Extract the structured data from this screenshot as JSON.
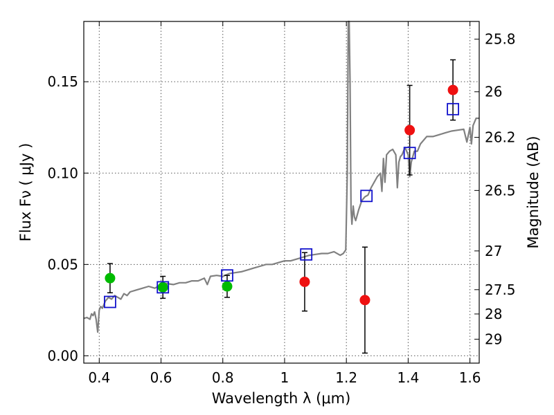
{
  "chart_data": {
    "type": "scatter",
    "xlabel": "Wavelength  λ (μm)",
    "ylabel": "Flux  Fν  ( μJy )",
    "right_ylabel": "Magnitude (AB)",
    "xlim": [
      0.35,
      1.63
    ],
    "ylim": [
      -0.004,
      0.183
    ],
    "grid": true,
    "x_ticks": [
      {
        "value": 0.4,
        "label": "0.4"
      },
      {
        "value": 0.6,
        "label": "0.6"
      },
      {
        "value": 0.8,
        "label": "0.8"
      },
      {
        "value": 1.0,
        "label": "1"
      },
      {
        "value": 1.2,
        "label": "1.2"
      },
      {
        "value": 1.4,
        "label": "1.4"
      },
      {
        "value": 1.6,
        "label": "1.6"
      }
    ],
    "y_ticks": [
      {
        "value": 0.0,
        "label": "0.00"
      },
      {
        "value": 0.05,
        "label": "0.05"
      },
      {
        "value": 0.1,
        "label": "0.10"
      },
      {
        "value": 0.15,
        "label": "0.15"
      }
    ],
    "right_ticks": [
      {
        "label": "25.8",
        "flux": 0.1733
      },
      {
        "label": "26",
        "flux": 0.1445
      },
      {
        "label": "26.2",
        "flux": 0.1196
      },
      {
        "label": "26.5",
        "flux": 0.0905
      },
      {
        "label": "27",
        "flux": 0.0574
      },
      {
        "label": "27.5",
        "flux": 0.0362
      },
      {
        "label": "28",
        "flux": 0.0229
      },
      {
        "label": "29",
        "flux": 0.0091
      }
    ],
    "series": [
      {
        "marker": "green-circle",
        "color": "#00bb00",
        "points": [
          {
            "x": 0.435,
            "y": 0.0425,
            "err": 0.008
          },
          {
            "x": 0.606,
            "y": 0.0375,
            "err": 0.006
          },
          {
            "x": 0.814,
            "y": 0.038,
            "err": 0.006
          }
        ]
      },
      {
        "marker": "red-circle",
        "color": "#ee1111",
        "points": [
          {
            "x": 1.065,
            "y": 0.0405,
            "err": 0.016
          },
          {
            "x": 1.26,
            "y": 0.0305,
            "err": 0.029
          },
          {
            "x": 1.405,
            "y": 0.1235,
            "err": 0.0245
          },
          {
            "x": 1.545,
            "y": 0.1455,
            "err": 0.0165
          }
        ]
      },
      {
        "marker": "blue-open-square",
        "color": "#1111cc",
        "points": [
          {
            "x": 0.435,
            "y": 0.0295
          },
          {
            "x": 0.606,
            "y": 0.0375
          },
          {
            "x": 0.814,
            "y": 0.044
          },
          {
            "x": 1.07,
            "y": 0.0555
          },
          {
            "x": 1.265,
            "y": 0.0875
          },
          {
            "x": 1.405,
            "y": 0.111
          },
          {
            "x": 1.545,
            "y": 0.135
          }
        ]
      },
      {
        "type": "line",
        "color": "#808080",
        "x": [
          0.35,
          0.36,
          0.37,
          0.375,
          0.38,
          0.385,
          0.39,
          0.395,
          0.4,
          0.405,
          0.41,
          0.42,
          0.43,
          0.44,
          0.45,
          0.46,
          0.47,
          0.48,
          0.49,
          0.5,
          0.52,
          0.54,
          0.56,
          0.58,
          0.6,
          0.62,
          0.64,
          0.66,
          0.68,
          0.7,
          0.72,
          0.74,
          0.75,
          0.76,
          0.78,
          0.8,
          0.82,
          0.84,
          0.86,
          0.88,
          0.9,
          0.92,
          0.94,
          0.96,
          0.98,
          1.0,
          1.02,
          1.04,
          1.06,
          1.08,
          1.1,
          1.12,
          1.14,
          1.16,
          1.18,
          1.19,
          1.198,
          1.203,
          1.206,
          1.209,
          1.212,
          1.215,
          1.218,
          1.222,
          1.226,
          1.23,
          1.24,
          1.25,
          1.26,
          1.27,
          1.28,
          1.29,
          1.3,
          1.31,
          1.315,
          1.32,
          1.325,
          1.33,
          1.34,
          1.35,
          1.36,
          1.365,
          1.37,
          1.375,
          1.38,
          1.39,
          1.4,
          1.405,
          1.41,
          1.42,
          1.43,
          1.44,
          1.46,
          1.48,
          1.5,
          1.52,
          1.54,
          1.56,
          1.58,
          1.59,
          1.6,
          1.605,
          1.61,
          1.62,
          1.63
        ],
        "y": [
          0.0205,
          0.021,
          0.02,
          0.023,
          0.022,
          0.024,
          0.02,
          0.013,
          0.025,
          0.027,
          0.026,
          0.03,
          0.032,
          0.031,
          0.033,
          0.032,
          0.031,
          0.034,
          0.033,
          0.035,
          0.036,
          0.037,
          0.038,
          0.037,
          0.039,
          0.0395,
          0.039,
          0.04,
          0.04,
          0.041,
          0.041,
          0.0425,
          0.039,
          0.0435,
          0.044,
          0.0435,
          0.045,
          0.0455,
          0.046,
          0.047,
          0.048,
          0.049,
          0.05,
          0.05,
          0.051,
          0.052,
          0.052,
          0.053,
          0.054,
          0.055,
          0.0555,
          0.056,
          0.056,
          0.057,
          0.055,
          0.056,
          0.058,
          0.1,
          0.2,
          0.2,
          0.15,
          0.08,
          0.072,
          0.082,
          0.076,
          0.074,
          0.08,
          0.085,
          0.087,
          0.088,
          0.092,
          0.095,
          0.098,
          0.1,
          0.09,
          0.108,
          0.095,
          0.11,
          0.112,
          0.113,
          0.11,
          0.092,
          0.106,
          0.109,
          0.11,
          0.114,
          0.11,
          0.098,
          0.106,
          0.112,
          0.112,
          0.116,
          0.12,
          0.12,
          0.121,
          0.122,
          0.123,
          0.1235,
          0.124,
          0.117,
          0.125,
          0.116,
          0.126,
          0.13,
          0.13
        ]
      }
    ]
  }
}
